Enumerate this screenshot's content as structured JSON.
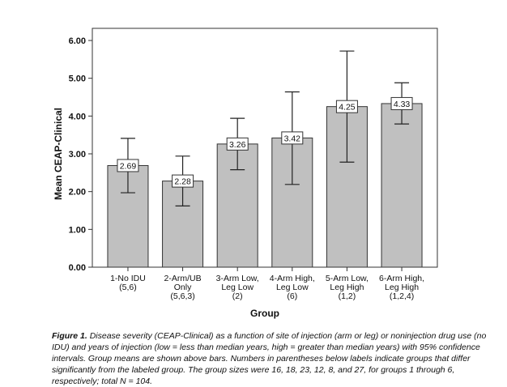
{
  "chart_data": {
    "type": "bar",
    "categories": [
      [
        "1-No IDU",
        "(5,6)"
      ],
      [
        "2-Arm/UB",
        "Only",
        "(5,6,3)"
      ],
      [
        "3-Arm Low,",
        "Leg Low",
        "(2)"
      ],
      [
        "4-Arm High,",
        "Leg Low",
        "(6)"
      ],
      [
        "5-Arm Low,",
        "Leg High",
        "(1,2)"
      ],
      [
        "6-Arm High,",
        "Leg High",
        "(1,2,4)"
      ]
    ],
    "values": [
      2.69,
      2.28,
      3.26,
      3.42,
      4.25,
      4.33
    ],
    "value_labels": [
      "2.69",
      "2.28",
      "3.26",
      "3.42",
      "4.25",
      "4.33"
    ],
    "ci_lower": [
      1.97,
      1.62,
      2.58,
      2.19,
      2.78,
      3.79
    ],
    "ci_upper": [
      3.41,
      2.94,
      3.94,
      4.64,
      5.72,
      4.88
    ],
    "ylabel": "Mean CEAP-Clinical",
    "xlabel": "Group",
    "ylim": [
      0,
      6.2
    ],
    "yticks": [
      "0.00",
      "1.00",
      "2.00",
      "3.00",
      "4.00",
      "5.00",
      "6.00"
    ],
    "bar_color": "#c0c0c0",
    "grid": false
  },
  "caption": {
    "label": "Figure 1.",
    "text": "Disease severity (CEAP-Clinical) as a function of site of injection (arm or leg) or noninjection drug use (no IDU) and years of injection (low = less than median years, high = greater than median years) with 95% confidence intervals. Group means are shown above bars. Numbers in parentheses below labels indicate groups that differ significantly from the labeled group. The group sizes were 16, 18, 23, 12, 8, and 27, for groups 1 through 6, respectively; total N = 104."
  }
}
